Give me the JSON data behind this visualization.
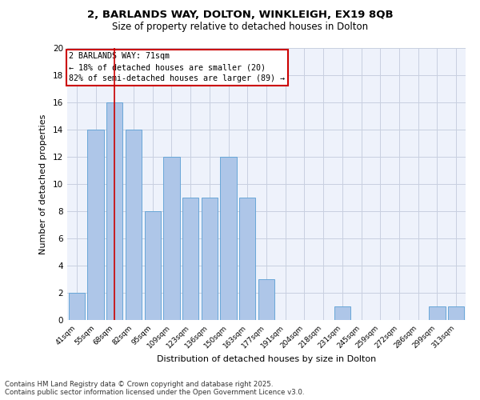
{
  "title_line1": "2, BARLANDS WAY, DOLTON, WINKLEIGH, EX19 8QB",
  "title_line2": "Size of property relative to detached houses in Dolton",
  "xlabel": "Distribution of detached houses by size in Dolton",
  "ylabel": "Number of detached properties",
  "categories": [
    "41sqm",
    "55sqm",
    "68sqm",
    "82sqm",
    "95sqm",
    "109sqm",
    "123sqm",
    "136sqm",
    "150sqm",
    "163sqm",
    "177sqm",
    "191sqm",
    "204sqm",
    "218sqm",
    "231sqm",
    "245sqm",
    "259sqm",
    "272sqm",
    "286sqm",
    "299sqm",
    "313sqm"
  ],
  "values": [
    2,
    14,
    16,
    14,
    8,
    12,
    9,
    9,
    12,
    9,
    3,
    0,
    0,
    0,
    1,
    0,
    0,
    0,
    0,
    1,
    1
  ],
  "bar_color": "#aec6e8",
  "bar_edge_color": "#5a9fd4",
  "annotation_line1": "2 BARLANDS WAY: 71sqm",
  "annotation_line2": "← 18% of detached houses are smaller (20)",
  "annotation_line3": "82% of semi-detached houses are larger (89) →",
  "vline_x_index": 2,
  "vline_color": "#cc0000",
  "annotation_box_color": "#cc0000",
  "background_color": "#eef2fb",
  "grid_color": "#c8cfe0",
  "footer_text": "Contains HM Land Registry data © Crown copyright and database right 2025.\nContains public sector information licensed under the Open Government Licence v3.0.",
  "ylim": [
    0,
    20
  ],
  "yticks": [
    0,
    2,
    4,
    6,
    8,
    10,
    12,
    14,
    16,
    18,
    20
  ]
}
